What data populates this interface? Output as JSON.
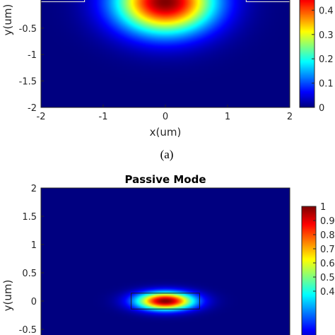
{
  "chart_data": [
    {
      "type": "heatmap",
      "panel_label": "(a)",
      "title": "",
      "xlabel": "x(um)",
      "ylabel": "y(um)",
      "xlim": [
        -2,
        2
      ],
      "ylim": [
        -2,
        2
      ],
      "x_ticks": [
        "-2",
        "-1",
        "0",
        "1",
        "2"
      ],
      "y_ticks": [
        "-0.5",
        "-1",
        "-1.5",
        "-2"
      ],
      "colorbar": {
        "min": 0,
        "max": 0.5,
        "ticks": [
          "0.4",
          "0.3",
          "0.2",
          "0.1",
          "0"
        ]
      },
      "field": {
        "center": [
          0,
          0
        ],
        "sigma_x": 0.55,
        "sigma_y": 0.42
      },
      "outline": {
        "x_gap_edges": [
          -1.3,
          1.3
        ],
        "y": 0.0
      }
    },
    {
      "type": "heatmap",
      "title": "Passive Mode",
      "xlabel": "",
      "ylabel": "y(um)",
      "xlim": [
        -2,
        2
      ],
      "ylim": [
        -2,
        2
      ],
      "x_ticks": [],
      "y_ticks": [
        "2",
        "1.5",
        "1",
        "0.5",
        "0",
        "-0.5"
      ],
      "colorbar": {
        "min": 0,
        "max": 1,
        "ticks": [
          "1",
          "0.9",
          "0.8",
          "0.7",
          "0.6",
          "0.5",
          "0.4"
        ]
      },
      "field": {
        "center": [
          0,
          0
        ],
        "sigma_x": 0.32,
        "sigma_y": 0.11
      },
      "rect": {
        "x": [
          -0.55,
          0.55
        ],
        "y": [
          -0.14,
          0.14
        ]
      }
    }
  ],
  "colors": {
    "colormap": "jet",
    "axis": "#262626",
    "outline": "#d9d9d9"
  }
}
